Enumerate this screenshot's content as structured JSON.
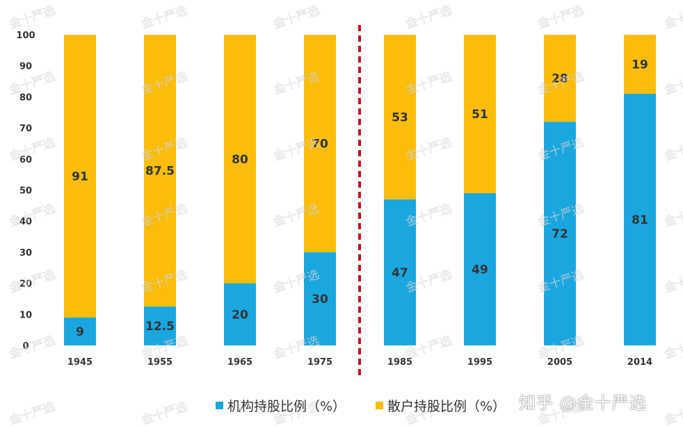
{
  "chart_data": {
    "type": "bar",
    "stacked": true,
    "categories": [
      "1945",
      "1955",
      "1965",
      "1975",
      "1985",
      "1995",
      "2005",
      "2014"
    ],
    "series": [
      {
        "name": "机构持股比例（%）",
        "color": "#1aa7e0",
        "values": [
          9,
          12.5,
          20,
          30,
          47,
          49,
          72,
          81
        ],
        "labels": [
          "9",
          "12.5",
          "20",
          "30",
          "47",
          "49",
          "72",
          "81"
        ]
      },
      {
        "name": "散户持股比例（%）",
        "color": "#fbbd0a",
        "values": [
          91,
          87.5,
          80,
          70,
          53,
          51,
          28,
          19
        ],
        "labels": [
          "91",
          "87.5",
          "80",
          "70",
          "53",
          "51",
          "28",
          "19"
        ]
      }
    ],
    "y_ticks": [
      "0",
      "10",
      "20",
      "30",
      "40",
      "50",
      "60",
      "70",
      "80",
      "90",
      "100"
    ],
    "ylim": [
      0,
      100
    ],
    "grid": false,
    "divider_after_category": "1975",
    "legend_position": "bottom"
  },
  "watermark": {
    "repeat_text": "金十严选",
    "credit": "知乎 @金十严选"
  }
}
